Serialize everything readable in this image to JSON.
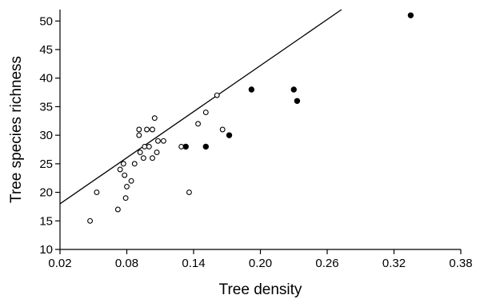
{
  "chart_data": {
    "type": "scatter",
    "title": "",
    "xlabel": "Tree density",
    "ylabel": "Tree species richness",
    "xlim": [
      0.02,
      0.38
    ],
    "ylim": [
      10,
      52
    ],
    "xticks": [
      "0.02",
      "0.08",
      "0.14",
      "0.20",
      "0.26",
      "0.32",
      "0.38"
    ],
    "yticks": [
      "10",
      "15",
      "20",
      "25",
      "30",
      "35",
      "40",
      "45",
      "50"
    ],
    "grid": false,
    "legend": "none",
    "series": [
      {
        "marker": "open-circle",
        "color": "#000000",
        "points": [
          {
            "x": 0.047,
            "y": 15
          },
          {
            "x": 0.053,
            "y": 20
          },
          {
            "x": 0.072,
            "y": 17
          },
          {
            "x": 0.074,
            "y": 24
          },
          {
            "x": 0.077,
            "y": 25
          },
          {
            "x": 0.078,
            "y": 23
          },
          {
            "x": 0.079,
            "y": 19
          },
          {
            "x": 0.08,
            "y": 21
          },
          {
            "x": 0.084,
            "y": 22
          },
          {
            "x": 0.087,
            "y": 25
          },
          {
            "x": 0.091,
            "y": 30
          },
          {
            "x": 0.091,
            "y": 31
          },
          {
            "x": 0.092,
            "y": 27
          },
          {
            "x": 0.095,
            "y": 26
          },
          {
            "x": 0.096,
            "y": 28
          },
          {
            "x": 0.098,
            "y": 31
          },
          {
            "x": 0.1,
            "y": 28
          },
          {
            "x": 0.103,
            "y": 26
          },
          {
            "x": 0.103,
            "y": 31
          },
          {
            "x": 0.105,
            "y": 33
          },
          {
            "x": 0.107,
            "y": 27
          },
          {
            "x": 0.108,
            "y": 29
          },
          {
            "x": 0.113,
            "y": 29
          },
          {
            "x": 0.129,
            "y": 28
          },
          {
            "x": 0.136,
            "y": 20
          },
          {
            "x": 0.144,
            "y": 32
          },
          {
            "x": 0.151,
            "y": 34
          },
          {
            "x": 0.161,
            "y": 37
          },
          {
            "x": 0.166,
            "y": 31
          }
        ]
      },
      {
        "marker": "filled-circle",
        "color": "#000000",
        "points": [
          {
            "x": 0.133,
            "y": 28
          },
          {
            "x": 0.151,
            "y": 28
          },
          {
            "x": 0.172,
            "y": 30
          },
          {
            "x": 0.192,
            "y": 38
          },
          {
            "x": 0.23,
            "y": 38
          },
          {
            "x": 0.233,
            "y": 36
          },
          {
            "x": 0.335,
            "y": 51
          }
        ]
      }
    ],
    "regression_line": {
      "intercept": 15.3,
      "slope": 134.5
    }
  }
}
